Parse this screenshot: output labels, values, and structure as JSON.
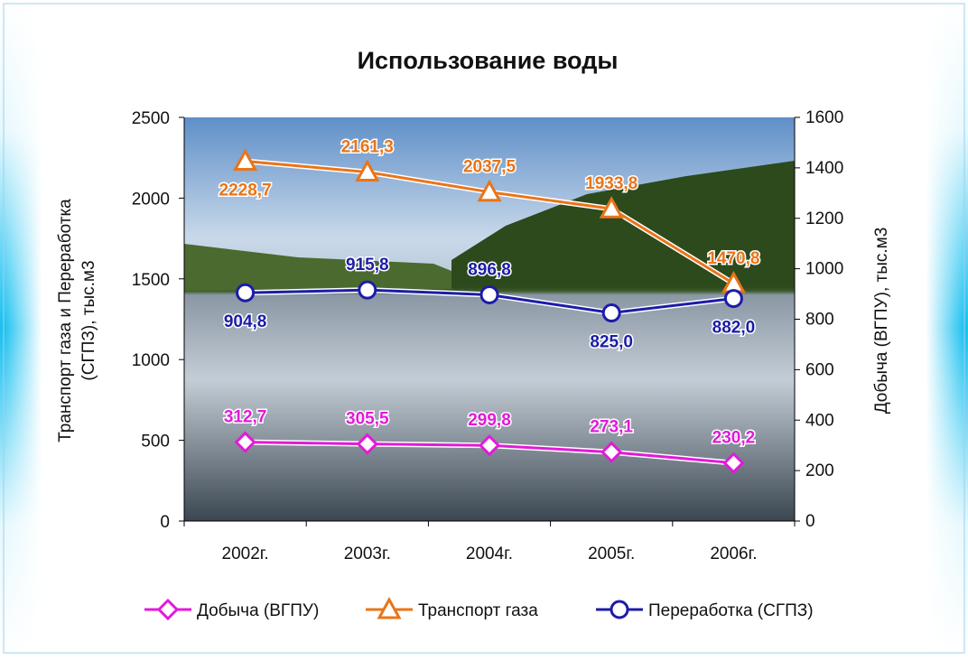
{
  "chart_data": {
    "type": "line",
    "title": "Использование воды",
    "categories": [
      "2002г.",
      "2003г.",
      "2004г.",
      "2005г.",
      "2006г."
    ],
    "ylabel": [
      "Транспорт газа и Переработка",
      "(СГПЗ), тыс.м3"
    ],
    "y2label": "Добыча (ВГПУ), тыс.м3",
    "ylim": [
      0,
      2500
    ],
    "yticks": [
      0,
      500,
      1000,
      1500,
      2000,
      2500
    ],
    "y2lim": [
      0,
      1600
    ],
    "y2ticks": [
      0,
      200,
      400,
      600,
      800,
      1000,
      1200,
      1400,
      1600
    ],
    "legend": "bottom",
    "series": [
      {
        "name": "Добыча (ВГПУ)",
        "color": "#e21ad8",
        "marker": "diamond",
        "axis": "y2",
        "values": [
          312.7,
          305.5,
          299.8,
          273.1,
          230.2
        ],
        "value_labels": [
          "312,7",
          "305,5",
          "299,8",
          "273,1",
          "230,2"
        ]
      },
      {
        "name": "Транспорт газа",
        "color": "#ea7418",
        "marker": "triangle",
        "values": [
          2228.7,
          2161.3,
          2037.5,
          1933.8,
          1470.8
        ],
        "value_labels": [
          "2228,7",
          "2161,3",
          "2037,5",
          "1933,8",
          "1470,8"
        ]
      },
      {
        "name": "Переработка (СГПЗ)",
        "color": "#1c1ca8",
        "marker": "circle",
        "axis": "y2",
        "values": [
          904.8,
          915.8,
          896.8,
          825.0,
          882.0
        ],
        "value_labels": [
          "904,8",
          "915,8",
          "896,8",
          "825,0",
          "882,0"
        ]
      }
    ]
  }
}
